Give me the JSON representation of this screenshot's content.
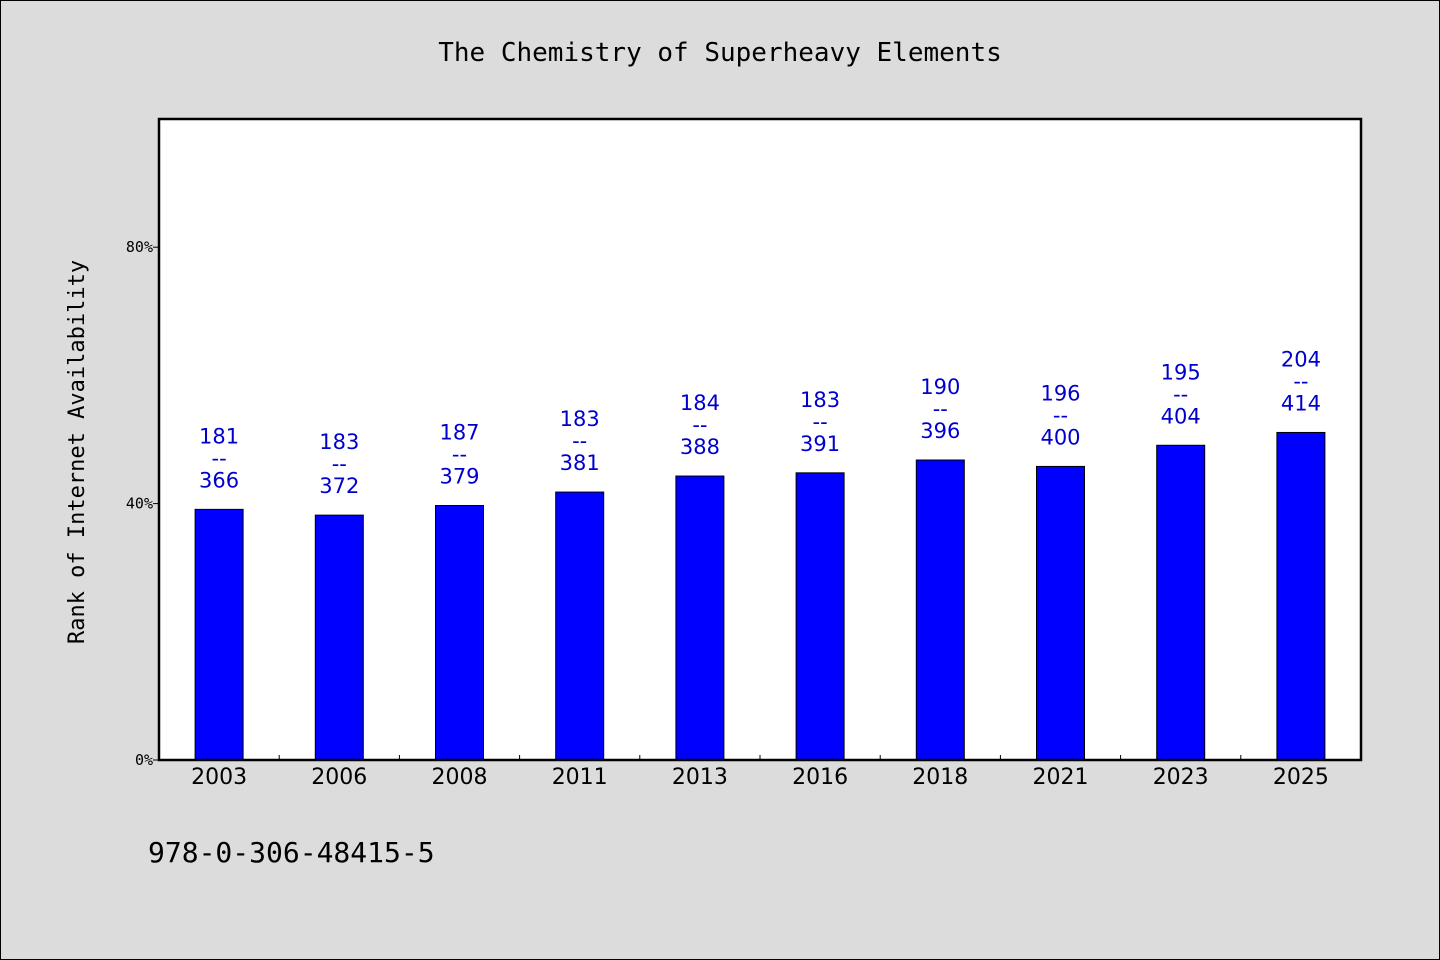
{
  "chart_data": {
    "type": "bar",
    "title": "The Chemistry of Superheavy Elements",
    "xlabel": "",
    "ylabel": "Rank of Internet Availability",
    "categories": [
      "2003",
      "2006",
      "2008",
      "2011",
      "2013",
      "2016",
      "2018",
      "2021",
      "2023",
      "2025"
    ],
    "values": [
      39.1,
      38.2,
      39.7,
      41.8,
      44.3,
      44.8,
      46.8,
      45.8,
      49.1,
      51.1
    ],
    "bar_labels": [
      [
        "181",
        "--",
        "366"
      ],
      [
        "183",
        "--",
        "372"
      ],
      [
        "187",
        "--",
        "379"
      ],
      [
        "183",
        "--",
        "381"
      ],
      [
        "184",
        "--",
        "388"
      ],
      [
        "183",
        "--",
        "391"
      ],
      [
        "190",
        "--",
        "396"
      ],
      [
        "196",
        "--",
        "400"
      ],
      [
        "195",
        "--",
        "404"
      ],
      [
        "204",
        "--",
        "414"
      ]
    ],
    "ylim": [
      0,
      100
    ],
    "yticks": [
      0,
      40,
      80
    ],
    "ytick_labels": [
      "0%",
      "40%",
      "80%"
    ],
    "grid": false,
    "bar_color": "#0000ff",
    "label_color": "#0000cd"
  },
  "footer_text": "978-0-306-48415-5"
}
